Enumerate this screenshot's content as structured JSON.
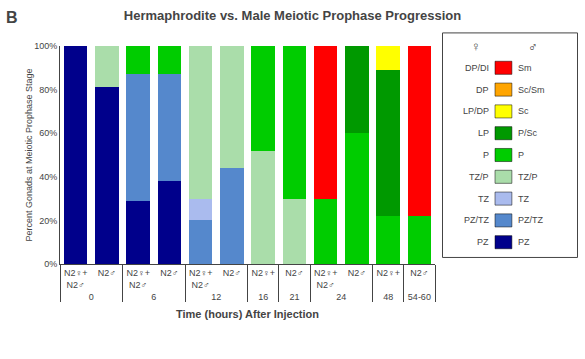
{
  "chart_data": {
    "type": "bar",
    "stacked": true,
    "title": "Hermaphrodite vs. Male Meiotic Prophase Progression",
    "panel_label": "B",
    "xlabel": "Time (hours) After Injection",
    "ylabel": "Percent Gonads at Meiotic Prophase Stage",
    "categories": [
      "N2♀+\nN2♂",
      "N2♂",
      "N2♀+\nN2♂",
      "N2♂",
      "N2♀+\nN2♂",
      "N2♂",
      "N2♀+",
      "N2♂",
      "N2♀+\nN2♂",
      "N2♂",
      "N2♀+",
      "N2♂"
    ],
    "groups": [
      "0",
      "0",
      "6",
      "6",
      "12",
      "12",
      "16",
      "21",
      "24",
      "24",
      "48",
      "54-60"
    ],
    "legend_headers": [
      "♀",
      "♂"
    ],
    "series": [
      {
        "name": "PZ",
        "name_male": "PZ",
        "color": "#00008B",
        "values": [
          100,
          81,
          29,
          38,
          0,
          0,
          0,
          0,
          0,
          0,
          0,
          0
        ]
      },
      {
        "name": "PZ/TZ",
        "name_male": "PZ/TZ",
        "color": "#5588CC",
        "values": [
          0,
          0,
          58,
          49,
          20,
          44,
          0,
          0,
          0,
          0,
          0,
          0
        ]
      },
      {
        "name": "TZ",
        "name_male": "TZ",
        "color": "#AABBEE",
        "values": [
          0,
          0,
          0,
          0,
          10,
          0,
          0,
          0,
          0,
          0,
          0,
          0
        ]
      },
      {
        "name": "TZ/P",
        "name_male": "TZ/P",
        "color": "#AADDAA",
        "values": [
          0,
          19,
          0,
          0,
          70,
          56,
          52,
          30,
          0,
          0,
          0,
          0
        ]
      },
      {
        "name": "P",
        "name_male": "P",
        "color": "#00CC00",
        "values": [
          0,
          0,
          13,
          13,
          0,
          0,
          48,
          70,
          30,
          60,
          22,
          22
        ]
      },
      {
        "name": "LP",
        "name_male": "P/Sc",
        "color": "#009900",
        "values": [
          0,
          0,
          0,
          0,
          0,
          0,
          0,
          0,
          0,
          40,
          67,
          0
        ]
      },
      {
        "name": "LP/DP",
        "name_male": "Sc",
        "color": "#FFFF00",
        "values": [
          0,
          0,
          0,
          0,
          0,
          0,
          0,
          0,
          0,
          0,
          11,
          0
        ]
      },
      {
        "name": "DP",
        "name_male": "Sc/Sm",
        "color": "#FFA500",
        "values": [
          0,
          0,
          0,
          0,
          0,
          0,
          0,
          0,
          0,
          0,
          0,
          0
        ]
      },
      {
        "name": "DP/DI",
        "name_male": "Sm",
        "color": "#FF0000",
        "values": [
          0,
          0,
          0,
          0,
          0,
          0,
          0,
          0,
          70,
          0,
          0,
          78
        ]
      }
    ],
    "ylim": [
      0,
      100
    ],
    "yticks": [
      {
        "value": 0,
        "label": "0%"
      },
      {
        "value": 20,
        "label": "20%"
      },
      {
        "value": 40,
        "label": "40%"
      },
      {
        "value": 60,
        "label": "60%"
      },
      {
        "value": 80,
        "label": "80%"
      },
      {
        "value": 100,
        "label": "100%"
      }
    ],
    "grid": false
  }
}
